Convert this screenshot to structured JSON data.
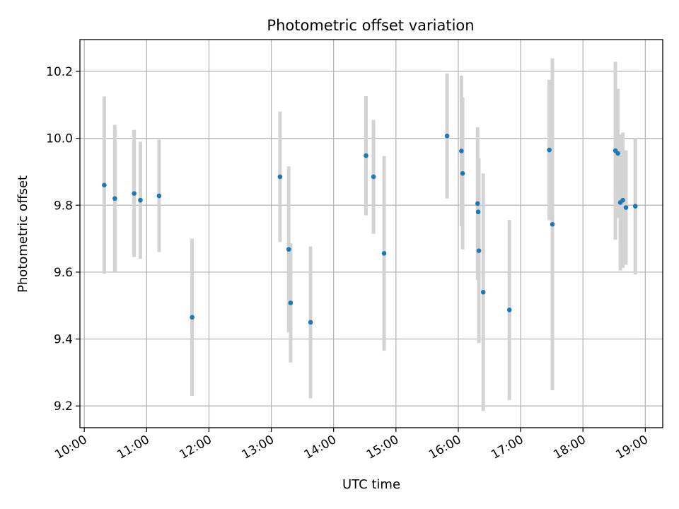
{
  "chart_data": {
    "type": "scatter",
    "title": "Photometric offset variation",
    "xlabel": "UTC time",
    "ylabel": "Photometric offset",
    "x_unit": "hours",
    "xlim": [
      9.93,
      19.28
    ],
    "ylim": [
      9.135,
      10.295
    ],
    "x_ticks": [
      10,
      11,
      12,
      13,
      14,
      15,
      16,
      17,
      18,
      19
    ],
    "x_tick_labels": [
      "10:00",
      "11:00",
      "12:00",
      "13:00",
      "14:00",
      "15:00",
      "16:00",
      "17:00",
      "18:00",
      "19:00"
    ],
    "y_ticks": [
      9.2,
      9.4,
      9.6,
      9.8,
      10.0,
      10.2
    ],
    "y_tick_labels": [
      "9.2",
      "9.4",
      "9.6",
      "9.8",
      "10.0",
      "10.2"
    ],
    "grid": true,
    "marker_color": "#1f77b4",
    "errorbar_color": "#d3d3d3",
    "points": [
      {
        "x": 10.32,
        "y": 9.86,
        "lo": 9.595,
        "hi": 10.125
      },
      {
        "x": 10.49,
        "y": 9.82,
        "lo": 9.6,
        "hi": 10.04
      },
      {
        "x": 10.8,
        "y": 9.835,
        "lo": 9.645,
        "hi": 10.025
      },
      {
        "x": 10.9,
        "y": 9.815,
        "lo": 9.64,
        "hi": 9.99
      },
      {
        "x": 11.2,
        "y": 9.828,
        "lo": 9.66,
        "hi": 9.996
      },
      {
        "x": 11.73,
        "y": 9.465,
        "lo": 9.23,
        "hi": 9.7
      },
      {
        "x": 13.14,
        "y": 9.885,
        "lo": 9.69,
        "hi": 10.08
      },
      {
        "x": 13.28,
        "y": 9.668,
        "lo": 9.42,
        "hi": 9.916
      },
      {
        "x": 13.31,
        "y": 9.508,
        "lo": 9.33,
        "hi": 9.686
      },
      {
        "x": 13.63,
        "y": 9.45,
        "lo": 9.223,
        "hi": 9.677
      },
      {
        "x": 14.52,
        "y": 9.948,
        "lo": 9.77,
        "hi": 10.126
      },
      {
        "x": 14.64,
        "y": 9.885,
        "lo": 9.715,
        "hi": 10.055
      },
      {
        "x": 14.81,
        "y": 9.656,
        "lo": 9.365,
        "hi": 9.947
      },
      {
        "x": 15.82,
        "y": 10.007,
        "lo": 9.82,
        "hi": 10.194
      },
      {
        "x": 16.05,
        "y": 9.962,
        "lo": 9.737,
        "hi": 10.187
      },
      {
        "x": 16.07,
        "y": 9.895,
        "lo": 9.668,
        "hi": 10.122
      },
      {
        "x": 16.31,
        "y": 9.805,
        "lo": 9.577,
        "hi": 10.033
      },
      {
        "x": 16.32,
        "y": 9.78,
        "lo": 9.62,
        "hi": 9.94
      },
      {
        "x": 16.33,
        "y": 9.664,
        "lo": 9.388,
        "hi": 9.94
      },
      {
        "x": 16.4,
        "y": 9.54,
        "lo": 9.185,
        "hi": 9.895
      },
      {
        "x": 16.82,
        "y": 9.487,
        "lo": 9.218,
        "hi": 9.756
      },
      {
        "x": 17.46,
        "y": 9.965,
        "lo": 9.755,
        "hi": 10.175
      },
      {
        "x": 17.51,
        "y": 9.743,
        "lo": 9.247,
        "hi": 10.239
      },
      {
        "x": 18.52,
        "y": 9.963,
        "lo": 9.697,
        "hi": 10.229
      },
      {
        "x": 18.56,
        "y": 9.955,
        "lo": 9.762,
        "hi": 10.148
      },
      {
        "x": 18.6,
        "y": 9.808,
        "lo": 9.605,
        "hi": 10.011
      },
      {
        "x": 18.64,
        "y": 9.815,
        "lo": 9.613,
        "hi": 10.017
      },
      {
        "x": 18.69,
        "y": 9.793,
        "lo": 9.622,
        "hi": 9.964
      },
      {
        "x": 18.84,
        "y": 9.797,
        "lo": 9.593,
        "hi": 10.001
      }
    ]
  }
}
